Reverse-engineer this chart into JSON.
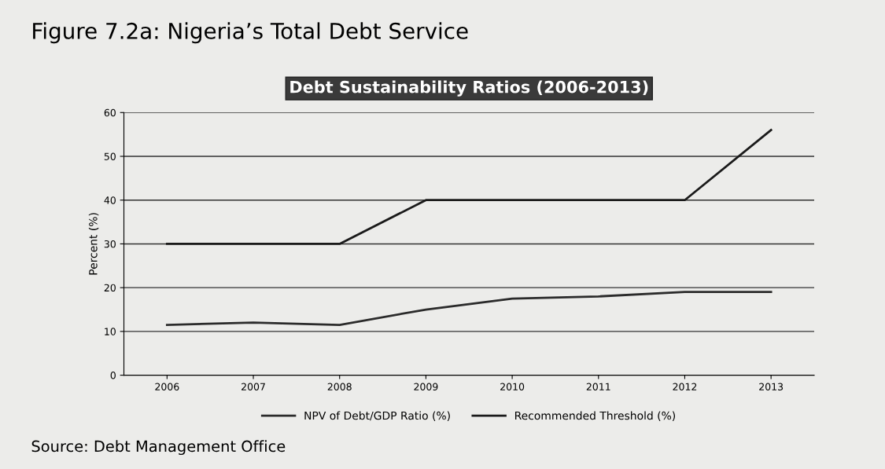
{
  "chart_data": {
    "type": "line",
    "title": "Figure 7.2a: Nigeria’s Total Debt Service",
    "subtitle": "Debt Sustainability Ratios (2006-2013)",
    "ylabel": "Percent (%)",
    "categories": [
      "2006",
      "2007",
      "2008",
      "2009",
      "2010",
      "2011",
      "2012",
      "2013"
    ],
    "series": [
      {
        "name": "NPV of Debt/GDP Ratio (%)",
        "color": "#2b2b2b",
        "values": [
          11.5,
          12,
          11.5,
          15,
          17.5,
          18,
          19,
          19
        ]
      },
      {
        "name": "Recommended Threshold (%)",
        "color": "#1a1a1a",
        "values": [
          30,
          30,
          30,
          40,
          40,
          40,
          40,
          56
        ]
      }
    ],
    "ylim": [
      0,
      60
    ],
    "yticks": [
      0,
      10,
      20,
      30,
      40,
      50,
      60
    ],
    "grid": "y",
    "legend": "bottom",
    "marker": "none",
    "line_style": "solid",
    "annotations": [
      "Source: Debt Management Office"
    ]
  }
}
